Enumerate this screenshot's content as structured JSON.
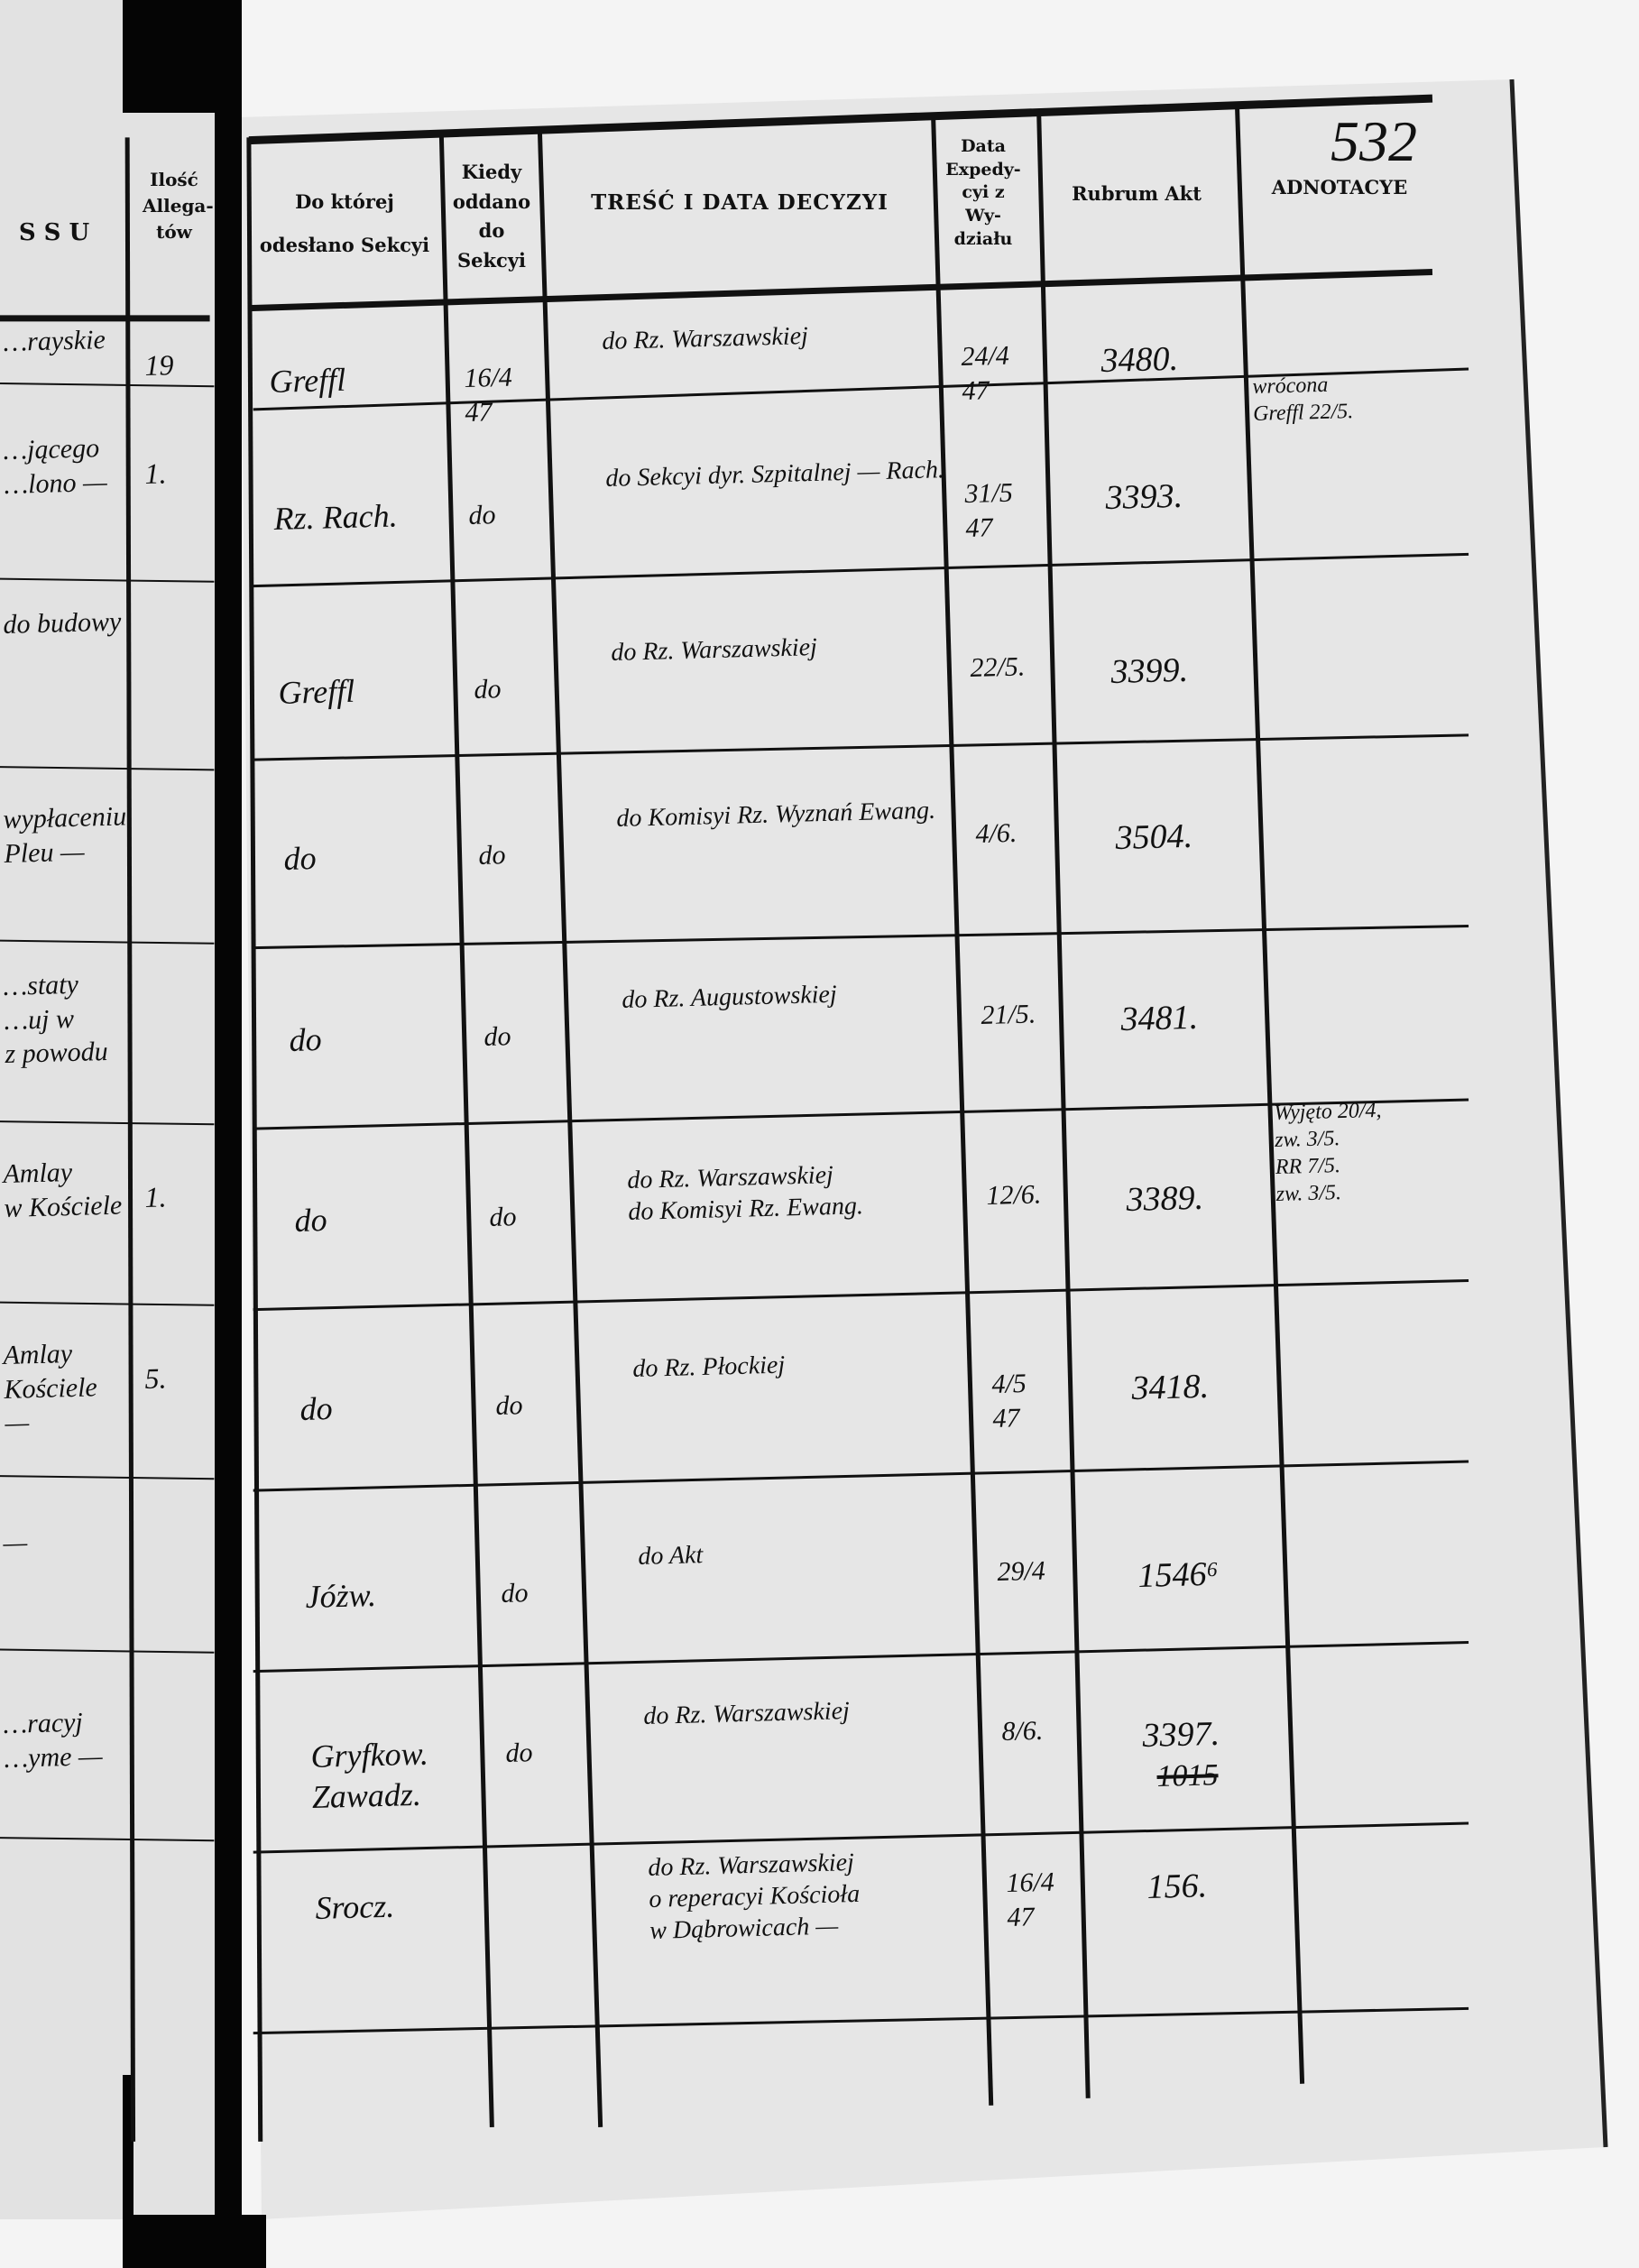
{
  "page_number": "532",
  "left_page": {
    "header_fragment": "S S U",
    "count_header": "Ilość Allega-tów",
    "fragments": [
      {
        "text": "…rayskie",
        "count": "19"
      },
      {
        "text": "…jącego\n…lono —",
        "count": "1."
      },
      {
        "text": "do budowy",
        "count": ""
      },
      {
        "text": "wypłaceniu\nPleu —",
        "count": ""
      },
      {
        "text": "…staty\n…uj w\nz powodu",
        "count": ""
      },
      {
        "text": "Amlay\nw Kościele",
        "count": "1."
      },
      {
        "text": "Amlay\nKościele\n—",
        "count": "5."
      },
      {
        "text": "—",
        "count": ""
      },
      {
        "text": "…racyj\n…yme —",
        "count": ""
      }
    ]
  },
  "table": {
    "headers": {
      "department": "Do której odesłano Sekcyi",
      "when_sent": "Kiedy oddano do Sekcyi",
      "content": "TREŚĆ I DATA DECYZYI",
      "dispatch_date": "Data Expedy-cyi z Wy-działu",
      "rubrum": "Rubrum Akt",
      "annotations": "ADNOTACYE"
    },
    "rows": [
      {
        "department": "Greffl",
        "when_sent": "16/4\n47",
        "content": "do Rz. Warszawskiej",
        "dispatch_date": "24/4\n47",
        "rubrum": "3480.",
        "annotation": ""
      },
      {
        "department": "Rz. Rach.",
        "when_sent": "do",
        "content": "do Sekcyi dyr. Szpitalnej — Rach.",
        "dispatch_date": "31/5\n47",
        "rubrum": "3393.",
        "annotation": "wrócona\nGreffl 22/5."
      },
      {
        "department": "Greffl",
        "when_sent": "do",
        "content": "do Rz. Warszawskiej",
        "dispatch_date": "22/5.",
        "rubrum": "3399.",
        "annotation": ""
      },
      {
        "department": "do",
        "when_sent": "do",
        "content": "do Komisyi Rz. Wyznań Ewang.",
        "dispatch_date": "4/6.",
        "rubrum": "3504.",
        "annotation": ""
      },
      {
        "department": "do",
        "when_sent": "do",
        "content": "do Rz. Augustowskiej",
        "dispatch_date": "21/5.",
        "rubrum": "3481.",
        "annotation": ""
      },
      {
        "department": "do",
        "when_sent": "do",
        "content": "do Rz. Warszawskiej\ndo Komisyi Rz. Ewang.",
        "dispatch_date": "12/6.",
        "rubrum": "3389.",
        "annotation": "Wyjęto 20/4,\nzw. 3/5.\nRR 7/5.\nzw. 3/5."
      },
      {
        "department": "do",
        "when_sent": "do",
        "content": "do Rz. Płockiej",
        "dispatch_date": "4/5\n47",
        "rubrum": "3418.",
        "annotation": ""
      },
      {
        "department": "Jóżw.",
        "when_sent": "do",
        "content": "do Akt",
        "dispatch_date": "29/4",
        "rubrum": "1546⁶",
        "annotation": ""
      },
      {
        "department": "Gryfkow.\nZawadz.",
        "when_sent": "do",
        "content": "do Rz. Warszawskiej",
        "dispatch_date": "8/6.",
        "rubrum": "3397.",
        "rubrum_struck": "1015",
        "annotation": ""
      },
      {
        "department": "Srocz.",
        "when_sent": "",
        "content": "do Rz. Warszawskiej\no reperacyi Kościoła\nw Dąbrowicach —",
        "dispatch_date": "16/4\n47",
        "rubrum": "156.",
        "annotation": ""
      }
    ]
  },
  "colors": {
    "paper": "#e4e4e4",
    "ink": "#111111",
    "spine": "#050505"
  }
}
